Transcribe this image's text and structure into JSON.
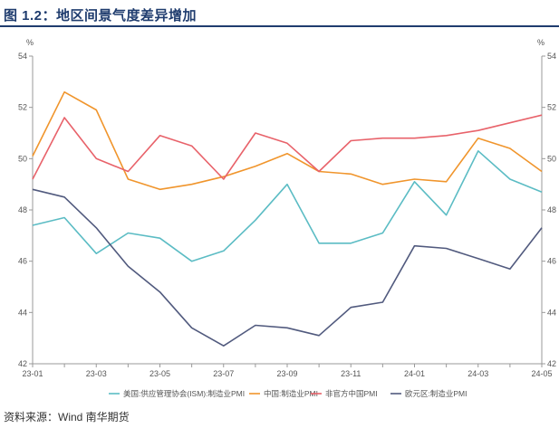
{
  "header": {
    "title": "图 1.2：地区间景气度差异增加"
  },
  "footer": {
    "source": "资料来源：Wind 南华期货"
  },
  "colors": {
    "title": "#1f3c6e",
    "axis": "#999999",
    "grid": "#e6e6e6"
  },
  "chart_data": {
    "type": "line",
    "unit_left": "%",
    "unit_right": "%",
    "ylim": [
      42,
      54
    ],
    "yticks": [
      42,
      44,
      46,
      48,
      50,
      52,
      54
    ],
    "grid": false,
    "legend_position": "bottom",
    "x": [
      "23-01",
      "23-02",
      "23-03",
      "23-04",
      "23-05",
      "23-06",
      "23-07",
      "23-08",
      "23-09",
      "23-10",
      "23-11",
      "23-12",
      "24-01",
      "24-02",
      "24-03",
      "24-04",
      "24-05"
    ],
    "xtick_labels": [
      "23-01",
      "23-03",
      "23-05",
      "23-07",
      "23-09",
      "23-11",
      "24-01",
      "24-03",
      "24-05"
    ],
    "series": [
      {
        "name": "美国:供应管理协会(ISM):制造业PMI",
        "color": "#5bbcc4",
        "values": [
          47.4,
          47.7,
          46.3,
          47.1,
          46.9,
          46.0,
          46.4,
          47.6,
          49.0,
          46.7,
          46.7,
          47.1,
          49.1,
          47.8,
          50.3,
          49.2,
          48.7
        ]
      },
      {
        "name": "中国:制造业PMI",
        "color": "#f0952c",
        "values": [
          50.1,
          52.6,
          51.9,
          49.2,
          48.8,
          49.0,
          49.3,
          49.7,
          50.2,
          49.5,
          49.4,
          49.0,
          49.2,
          49.1,
          50.8,
          50.4,
          49.5
        ]
      },
      {
        "name": "非官方中国PMI",
        "color": "#e8626a",
        "values": [
          49.2,
          51.6,
          50.0,
          49.5,
          50.9,
          50.5,
          49.2,
          51.0,
          50.6,
          49.5,
          50.7,
          50.8,
          50.8,
          50.9,
          51.1,
          51.4,
          51.7
        ]
      },
      {
        "name": "欧元区:制造业PMI",
        "color": "#515a7e",
        "values": [
          48.8,
          48.5,
          47.3,
          45.8,
          44.8,
          43.4,
          42.7,
          43.5,
          43.4,
          43.1,
          44.2,
          44.4,
          46.6,
          46.5,
          46.1,
          45.7,
          47.3
        ]
      }
    ]
  }
}
